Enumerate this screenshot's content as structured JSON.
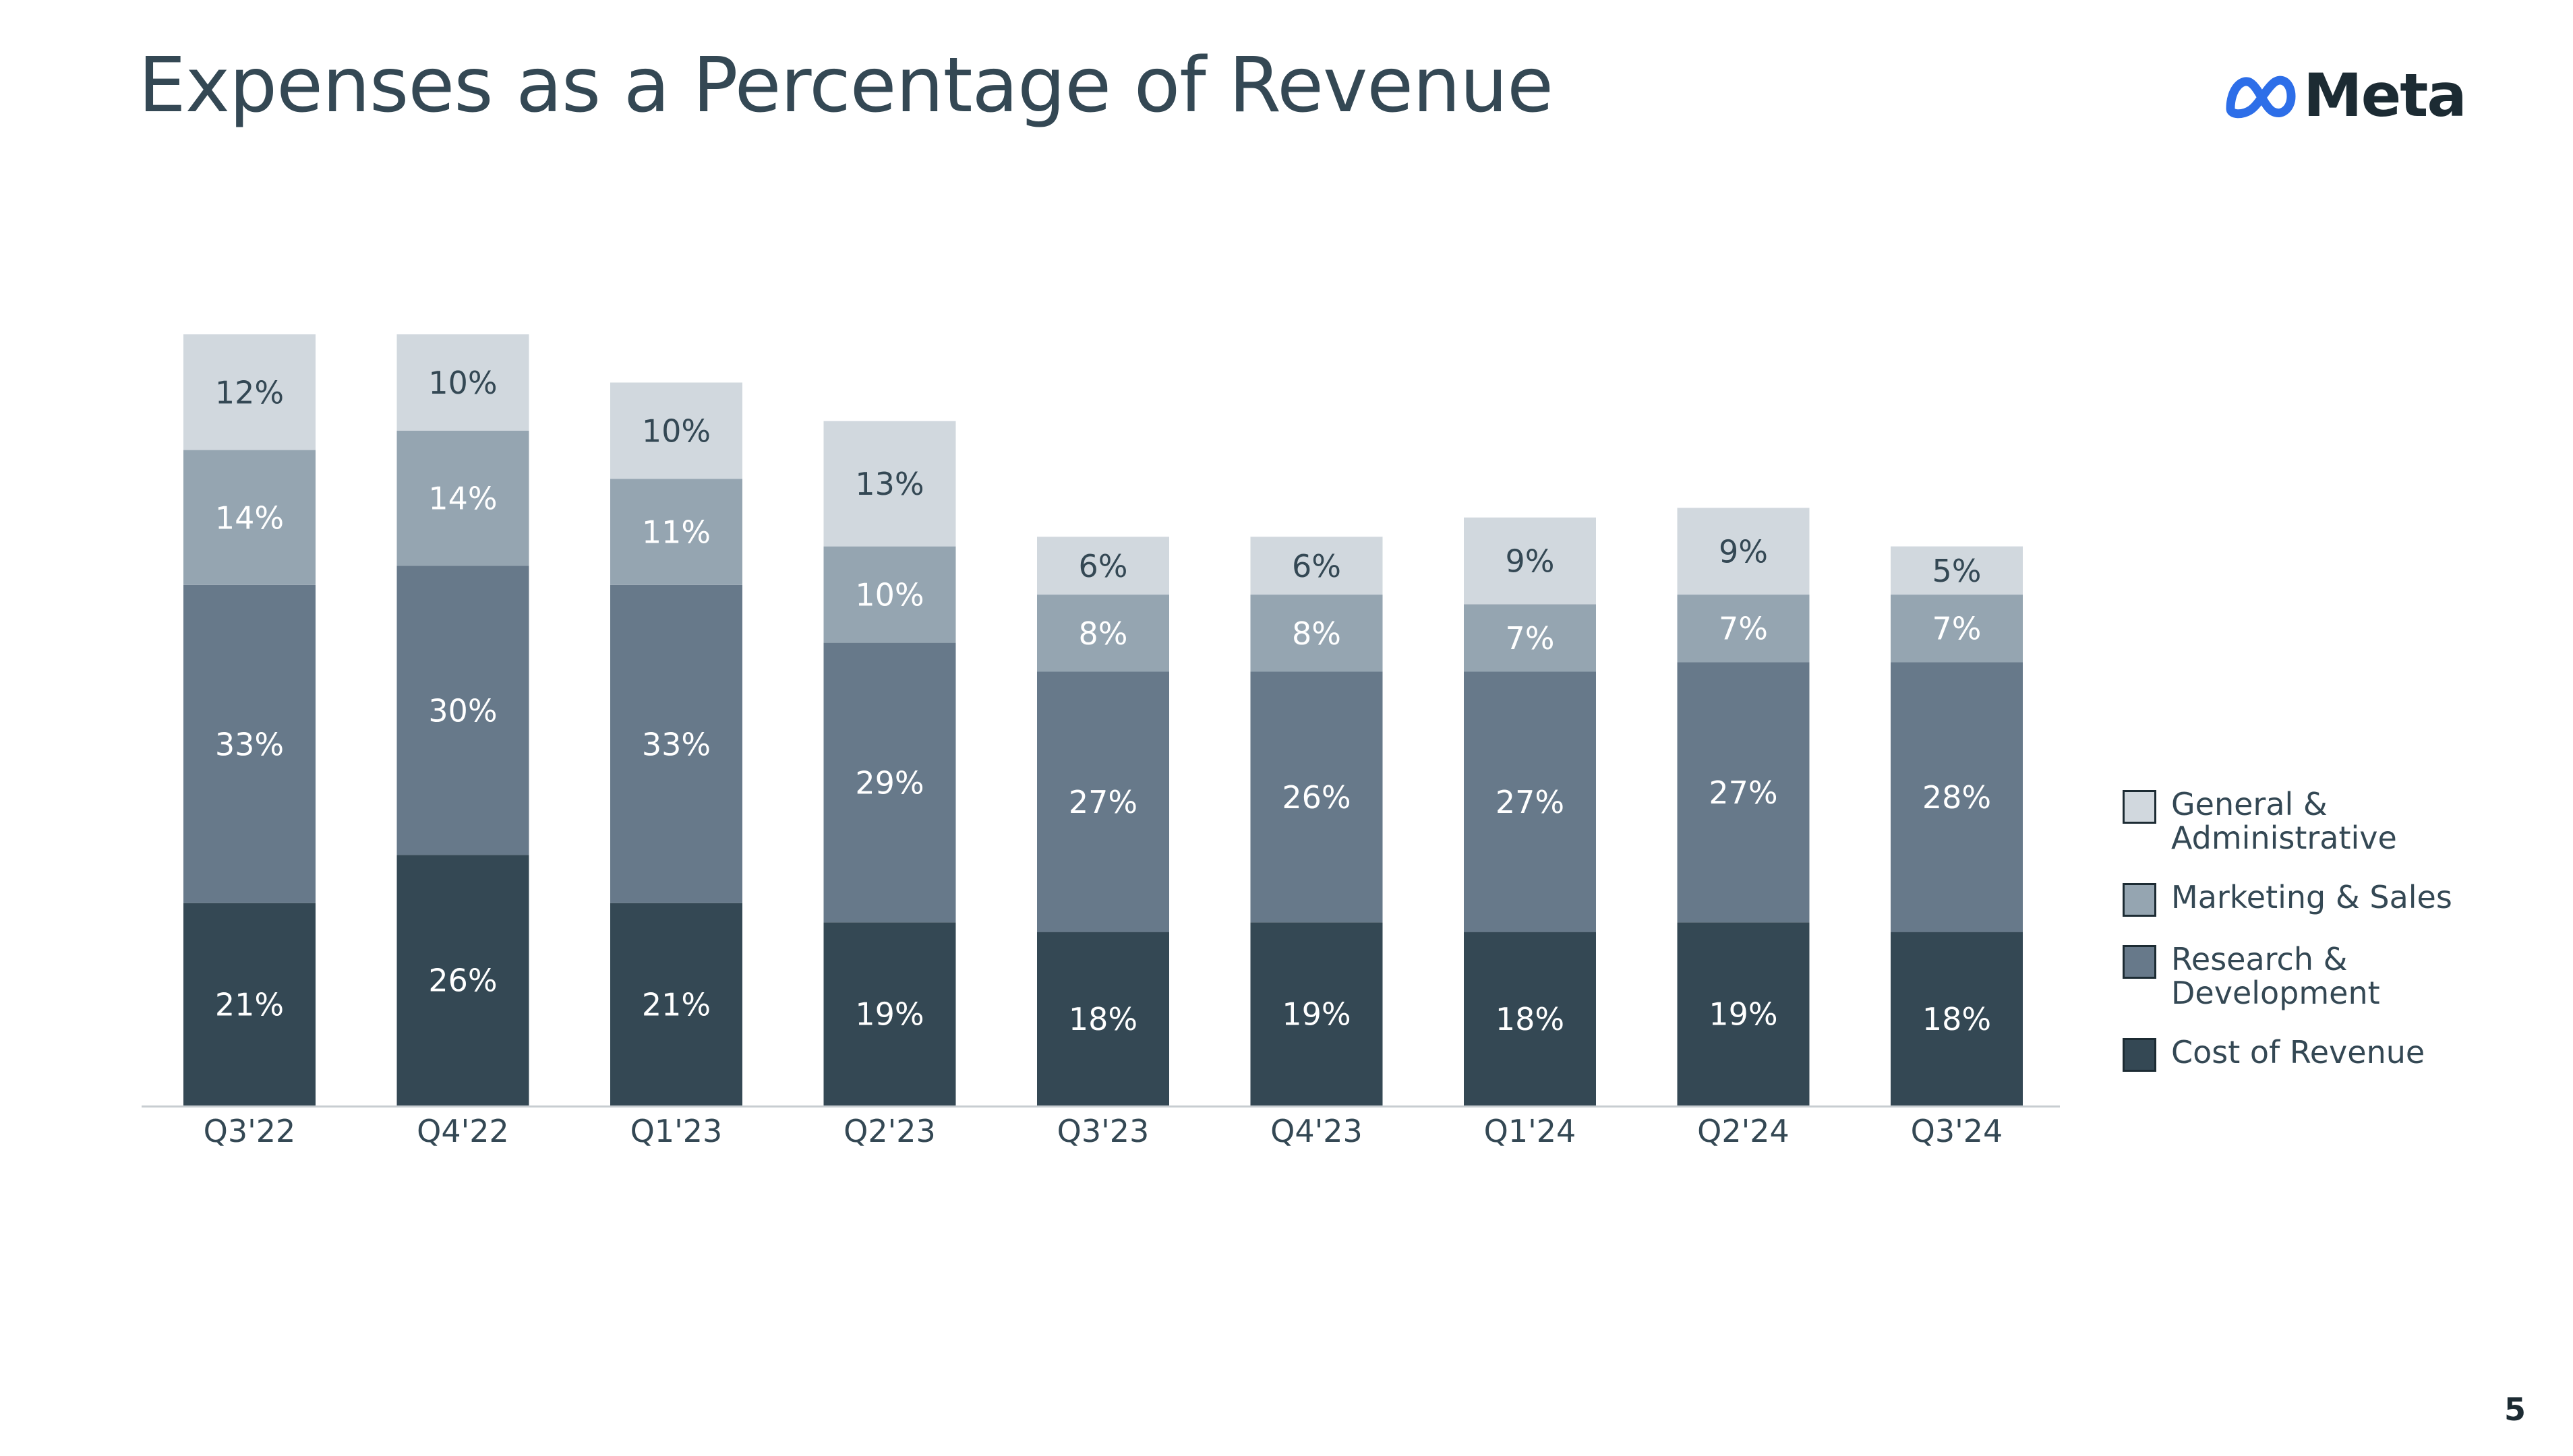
{
  "page": {
    "title": "Expenses as a Percentage of Revenue",
    "logo_text": "Meta",
    "logo_icon": "meta-infinity-icon",
    "page_number": "5"
  },
  "colors": {
    "general_admin": "#d1d8de",
    "marketing_sales": "#95a5b1",
    "research_dev": "#67798a",
    "cost_of_revenue": "#344854",
    "axis_line": "#c8cdd1",
    "label_dark_text": "#344854",
    "label_light_text": "#ffffff",
    "logo_blue": "#2d6ee8"
  },
  "chart_data": {
    "type": "bar",
    "stacked": true,
    "title": "",
    "xlabel": "",
    "ylabel": "",
    "grid": false,
    "legend_position": "right",
    "categories": [
      "Q3'22",
      "Q4'22",
      "Q1'23",
      "Q2'23",
      "Q3'23",
      "Q4'23",
      "Q1'24",
      "Q2'24",
      "Q3'24"
    ],
    "series": [
      {
        "name": "Cost of Revenue",
        "key": "cost_of_revenue",
        "values": [
          21,
          26,
          21,
          19,
          18,
          19,
          18,
          19,
          18
        ],
        "labels": [
          "21%",
          "26%",
          "21%",
          "19%",
          "18%",
          "19%",
          "18%",
          "19%",
          "18%"
        ]
      },
      {
        "name": "Research & Development",
        "key": "research_dev",
        "values": [
          33,
          30,
          33,
          29,
          27,
          26,
          27,
          27,
          28
        ],
        "labels": [
          "33%",
          "30%",
          "33%",
          "29%",
          "27%",
          "26%",
          "27%",
          "27%",
          "28%"
        ]
      },
      {
        "name": "Marketing & Sales",
        "key": "marketing_sales",
        "values": [
          14,
          14,
          11,
          10,
          8,
          8,
          7,
          7,
          7
        ],
        "labels": [
          "14%",
          "14%",
          "11%",
          "10%",
          "8%",
          "8%",
          "7%",
          "7%",
          "7%"
        ]
      },
      {
        "name": "General & Administrative",
        "key": "general_admin",
        "values": [
          12,
          10,
          10,
          13,
          6,
          6,
          9,
          9,
          5
        ],
        "labels": [
          "12%",
          "10%",
          "10%",
          "13%",
          "6%",
          "6%",
          "9%",
          "9%",
          "5%"
        ]
      }
    ],
    "ylim": [
      0,
      80
    ]
  },
  "legend": {
    "items": [
      {
        "label": "General & Administrative",
        "key": "general_admin"
      },
      {
        "label": "Marketing & Sales",
        "key": "marketing_sales"
      },
      {
        "label": "Research & Development",
        "key": "research_dev"
      },
      {
        "label": "Cost of Revenue",
        "key": "cost_of_revenue"
      }
    ]
  }
}
